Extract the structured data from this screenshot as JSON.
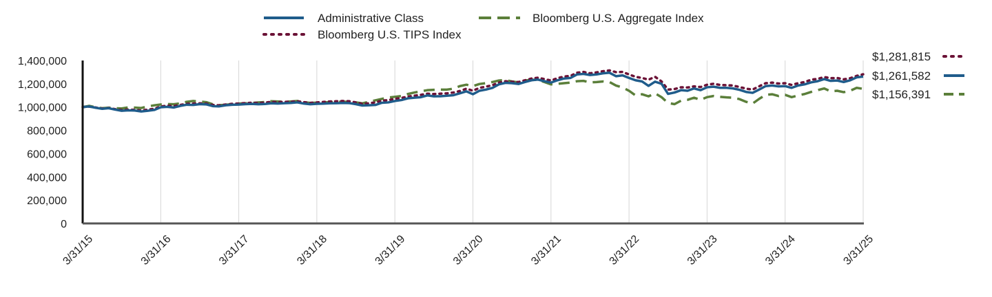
{
  "chart_data": {
    "type": "line",
    "title": "",
    "xlabel": "",
    "ylabel": "",
    "ylim": [
      0,
      1400000
    ],
    "y_ticks": [
      0,
      200000,
      400000,
      600000,
      800000,
      1000000,
      1200000,
      1400000
    ],
    "y_tick_labels": [
      "0",
      "200,000",
      "400,000",
      "600,000",
      "800,000",
      "1,000,000",
      "1,200,000",
      "1,400,000"
    ],
    "x_tick_labels": [
      "3/31/15",
      "3/31/16",
      "3/31/17",
      "3/31/18",
      "3/31/19",
      "3/31/20",
      "3/31/21",
      "3/31/22",
      "3/31/23",
      "3/31/24",
      "3/31/25"
    ],
    "grid": "vertical",
    "legend_position": "top",
    "series": [
      {
        "name": "Administrative Class",
        "color": "#1f5c8b",
        "style": "solid",
        "end_label": "$1,261,582",
        "values": [
          1000000,
          1005000,
          994000,
          985000,
          990000,
          978000,
          968000,
          972000,
          970000,
          962000,
          968000,
          975000,
          998000,
          1002000,
          996000,
          1010000,
          1020000,
          1018000,
          1025000,
          1023000,
          1008000,
          1006000,
          1015000,
          1020000,
          1021000,
          1025000,
          1027000,
          1024000,
          1026000,
          1032000,
          1030000,
          1033000,
          1035000,
          1040000,
          1030000,
          1024000,
          1028000,
          1029000,
          1032000,
          1033000,
          1035000,
          1034000,
          1025000,
          1013000,
          1015000,
          1018000,
          1037000,
          1040000,
          1052000,
          1060000,
          1075000,
          1080000,
          1085000,
          1100000,
          1092000,
          1093000,
          1097000,
          1102000,
          1118000,
          1135000,
          1110000,
          1140000,
          1150000,
          1165000,
          1195000,
          1208000,
          1205000,
          1198000,
          1215000,
          1230000,
          1236000,
          1222000,
          1210000,
          1230000,
          1245000,
          1250000,
          1280000,
          1285000,
          1275000,
          1280000,
          1290000,
          1295000,
          1265000,
          1272000,
          1250000,
          1230000,
          1220000,
          1182000,
          1218000,
          1200000,
          1113000,
          1125000,
          1145000,
          1140000,
          1160000,
          1145000,
          1170000,
          1175000,
          1165000,
          1165000,
          1160000,
          1148000,
          1130000,
          1122000,
          1150000,
          1180000,
          1185000,
          1178000,
          1180000,
          1165000,
          1185000,
          1195000,
          1212000,
          1222000,
          1240000,
          1225000,
          1228000,
          1215000,
          1230000,
          1255000,
          1261582
        ]
      },
      {
        "name": "Bloomberg U.S. Aggregate Index",
        "color": "#5b7f3a",
        "style": "dashed",
        "end_label": "$1,156,391",
        "values": [
          1000000,
          1010000,
          998000,
          990000,
          995000,
          990000,
          988000,
          997000,
          995000,
          992000,
          1005000,
          1015000,
          1022000,
          1026000,
          1024000,
          1032000,
          1045000,
          1052000,
          1048000,
          1042000,
          1024000,
          1016000,
          1020000,
          1026000,
          1030000,
          1032000,
          1035000,
          1040000,
          1043000,
          1050000,
          1048000,
          1045000,
          1048000,
          1052000,
          1042000,
          1035000,
          1038000,
          1040000,
          1043000,
          1044000,
          1046000,
          1045000,
          1040000,
          1032000,
          1045000,
          1058000,
          1070000,
          1082000,
          1088000,
          1095000,
          1112000,
          1125000,
          1135000,
          1145000,
          1148000,
          1150000,
          1150000,
          1158000,
          1180000,
          1192000,
          1180000,
          1198000,
          1205000,
          1215000,
          1228000,
          1232000,
          1220000,
          1212000,
          1228000,
          1235000,
          1232000,
          1215000,
          1195000,
          1200000,
          1205000,
          1210000,
          1222000,
          1225000,
          1212000,
          1215000,
          1220000,
          1215000,
          1185000,
          1168000,
          1140000,
          1100000,
          1110000,
          1092000,
          1118000,
          1085000,
          1035000,
          1025000,
          1055000,
          1062000,
          1080000,
          1062000,
          1085000,
          1095000,
          1088000,
          1083000,
          1080000,
          1068000,
          1045000,
          1030000,
          1070000,
          1105000,
          1110000,
          1095000,
          1105000,
          1085000,
          1100000,
          1112000,
          1130000,
          1145000,
          1160000,
          1135000,
          1140000,
          1128000,
          1140000,
          1165000,
          1156391
        ]
      },
      {
        "name": "Bloomberg U.S. TIPS Index",
        "color": "#6b1236",
        "style": "dotted",
        "end_label": "$1,281,815",
        "values": [
          1000000,
          1004000,
          996000,
          988000,
          992000,
          982000,
          975000,
          978000,
          976000,
          970000,
          978000,
          985000,
          1005000,
          1012000,
          1008000,
          1018000,
          1028000,
          1030000,
          1032000,
          1030000,
          1018000,
          1015000,
          1022000,
          1028000,
          1030000,
          1034000,
          1037000,
          1035000,
          1038000,
          1045000,
          1043000,
          1045000,
          1046000,
          1050000,
          1042000,
          1036000,
          1040000,
          1044000,
          1048000,
          1050000,
          1052000,
          1050000,
          1040000,
          1028000,
          1032000,
          1040000,
          1055000,
          1060000,
          1070000,
          1078000,
          1090000,
          1098000,
          1105000,
          1115000,
          1112000,
          1115000,
          1118000,
          1125000,
          1138000,
          1158000,
          1140000,
          1165000,
          1175000,
          1188000,
          1210000,
          1222000,
          1218000,
          1215000,
          1230000,
          1245000,
          1252000,
          1240000,
          1228000,
          1248000,
          1262000,
          1268000,
          1295000,
          1302000,
          1290000,
          1298000,
          1308000,
          1315000,
          1300000,
          1302000,
          1280000,
          1260000,
          1250000,
          1235000,
          1260000,
          1220000,
          1150000,
          1155000,
          1170000,
          1168000,
          1178000,
          1172000,
          1192000,
          1200000,
          1190000,
          1188000,
          1185000,
          1172000,
          1158000,
          1150000,
          1178000,
          1205000,
          1210000,
          1202000,
          1205000,
          1190000,
          1205000,
          1215000,
          1235000,
          1242000,
          1258000,
          1248000,
          1250000,
          1238000,
          1248000,
          1268000,
          1281815
        ]
      }
    ]
  }
}
